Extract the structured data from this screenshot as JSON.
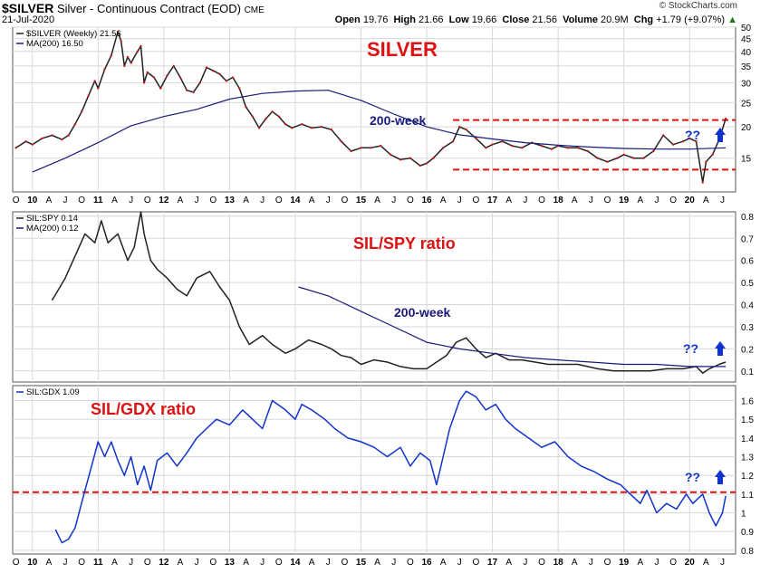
{
  "header": {
    "symbol": "$SILVER",
    "name": "Silver - Continuous Contract (EOD)",
    "exchange": "CME",
    "date": "21-Jul-2020",
    "open_label": "Open",
    "open": "19.76",
    "high_label": "High",
    "high": "21.66",
    "low_label": "Low",
    "low": "19.66",
    "close_label": "Close",
    "close": "21.56",
    "volume_label": "Volume",
    "volume": "20.9M",
    "chg_label": "Chg",
    "chg": "+1.79 (+9.07%)",
    "chg_arrow": "▲",
    "logo": "© StockCharts.com"
  },
  "colors": {
    "red": "#dd1111",
    "blue": "#1133cc",
    "navy": "#1a1a7a",
    "price": "#222222",
    "grid": "#d8d8d8"
  },
  "chart_data": [
    {
      "type": "line",
      "title": "SILVER",
      "legend_entries": [
        "$SILVER (Weekly) 21.56",
        "MA(200) 16.50"
      ],
      "annotations": [
        "200-week",
        "??"
      ],
      "x_range": [
        2009.7,
        2020.7
      ],
      "ylim": [
        11,
        50
      ],
      "y_ticks": [
        15,
        20,
        25,
        30,
        35,
        40,
        45,
        50
      ],
      "log_scale": true,
      "grid": true,
      "reference_lines": [
        21.3,
        13.5
      ],
      "series": [
        {
          "name": "$SILVER (Weekly) 21.56",
          "x": [
            2009.75,
            2009.9,
            2010.0,
            2010.15,
            2010.3,
            2010.45,
            2010.55,
            2010.65,
            2010.75,
            2010.85,
            2010.95,
            2011.0,
            2011.1,
            2011.2,
            2011.3,
            2011.35,
            2011.4,
            2011.45,
            2011.5,
            2011.6,
            2011.65,
            2011.7,
            2011.75,
            2011.85,
            2011.95,
            2012.05,
            2012.15,
            2012.25,
            2012.35,
            2012.45,
            2012.55,
            2012.65,
            2012.75,
            2012.85,
            2012.95,
            2013.05,
            2013.15,
            2013.25,
            2013.35,
            2013.45,
            2013.55,
            2013.65,
            2013.75,
            2013.85,
            2013.95,
            2014.1,
            2014.25,
            2014.4,
            2014.55,
            2014.7,
            2014.85,
            2015.0,
            2015.15,
            2015.3,
            2015.45,
            2015.6,
            2015.75,
            2015.9,
            2016.0,
            2016.1,
            2016.25,
            2016.4,
            2016.5,
            2016.6,
            2016.75,
            2016.9,
            2017.0,
            2017.15,
            2017.3,
            2017.45,
            2017.6,
            2017.75,
            2017.9,
            2018.0,
            2018.15,
            2018.3,
            2018.45,
            2018.6,
            2018.75,
            2018.9,
            2019.0,
            2019.15,
            2019.3,
            2019.45,
            2019.6,
            2019.75,
            2019.9,
            2020.0,
            2020.1,
            2020.2,
            2020.25,
            2020.35,
            2020.45,
            2020.55
          ],
          "values": [
            16.5,
            17.5,
            17.0,
            18.0,
            18.5,
            17.8,
            18.5,
            20.5,
            23.0,
            26.5,
            30.5,
            28.5,
            34.0,
            38.5,
            48.0,
            44.0,
            35.0,
            38.0,
            36.0,
            40.0,
            42.0,
            30.0,
            33.0,
            31.5,
            28.5,
            32.0,
            35.0,
            31.5,
            28.0,
            27.5,
            30.0,
            34.5,
            33.5,
            32.5,
            30.5,
            31.5,
            28.5,
            24.0,
            22.0,
            19.8,
            21.5,
            23.0,
            22.0,
            20.5,
            19.8,
            20.5,
            19.8,
            20.0,
            19.5,
            17.5,
            16.0,
            16.5,
            16.5,
            16.8,
            15.5,
            14.8,
            15.0,
            14.0,
            14.3,
            15.0,
            16.5,
            17.5,
            20.0,
            19.5,
            18.0,
            16.5,
            17.0,
            17.5,
            16.8,
            16.5,
            17.3,
            16.8,
            16.3,
            16.8,
            16.5,
            16.5,
            16.0,
            15.0,
            14.5,
            15.0,
            15.5,
            15.0,
            15.0,
            16.0,
            18.5,
            17.0,
            17.5,
            18.0,
            17.5,
            12.0,
            14.5,
            15.5,
            17.8,
            21.56
          ]
        },
        {
          "name": "MA(200) 16.50",
          "x": [
            2010.0,
            2010.5,
            2011.0,
            2011.5,
            2012.0,
            2012.5,
            2013.0,
            2013.5,
            2014.0,
            2014.5,
            2015.0,
            2015.5,
            2016.0,
            2016.5,
            2017.0,
            2017.5,
            2018.0,
            2018.5,
            2019.0,
            2019.5,
            2020.0,
            2020.55
          ],
          "values": [
            13.2,
            15.0,
            17.3,
            20.2,
            22.0,
            23.5,
            25.8,
            27.2,
            27.8,
            28.0,
            25.5,
            22.5,
            20.0,
            18.6,
            17.9,
            17.3,
            16.9,
            16.6,
            16.4,
            16.3,
            16.3,
            16.5
          ]
        }
      ]
    },
    {
      "type": "line",
      "title": "SIL/SPY ratio",
      "legend_entries": [
        "SIL:SPY 0.14",
        "MA(200) 0.12"
      ],
      "annotations": [
        "200-week",
        "??"
      ],
      "x_range": [
        2009.7,
        2020.7
      ],
      "ylim": [
        0.05,
        0.82
      ],
      "y_ticks": [
        0.1,
        0.2,
        0.3,
        0.4,
        0.5,
        0.6,
        0.7,
        0.8
      ],
      "grid": true,
      "series": [
        {
          "name": "SIL:SPY 0.14",
          "x": [
            2010.3,
            2010.5,
            2010.65,
            2010.8,
            2010.95,
            2011.05,
            2011.15,
            2011.3,
            2011.45,
            2011.55,
            2011.65,
            2011.7,
            2011.8,
            2011.9,
            2012.05,
            2012.2,
            2012.35,
            2012.5,
            2012.7,
            2012.85,
            2013.0,
            2013.15,
            2013.3,
            2013.5,
            2013.65,
            2013.85,
            2014.0,
            2014.2,
            2014.4,
            2014.55,
            2014.7,
            2014.85,
            2015.0,
            2015.2,
            2015.4,
            2015.6,
            2015.8,
            2016.0,
            2016.15,
            2016.3,
            2016.45,
            2016.6,
            2016.75,
            2016.9,
            2017.05,
            2017.25,
            2017.45,
            2017.65,
            2017.85,
            2018.05,
            2018.3,
            2018.6,
            2018.85,
            2019.1,
            2019.4,
            2019.65,
            2019.9,
            2020.1,
            2020.2,
            2020.3,
            2020.45,
            2020.55
          ],
          "values": [
            0.42,
            0.52,
            0.62,
            0.72,
            0.68,
            0.78,
            0.68,
            0.72,
            0.6,
            0.66,
            0.82,
            0.72,
            0.6,
            0.56,
            0.52,
            0.47,
            0.44,
            0.52,
            0.55,
            0.48,
            0.42,
            0.3,
            0.22,
            0.26,
            0.22,
            0.18,
            0.2,
            0.24,
            0.22,
            0.2,
            0.17,
            0.16,
            0.13,
            0.15,
            0.14,
            0.12,
            0.11,
            0.11,
            0.14,
            0.17,
            0.23,
            0.25,
            0.2,
            0.16,
            0.18,
            0.15,
            0.15,
            0.14,
            0.13,
            0.13,
            0.13,
            0.11,
            0.1,
            0.1,
            0.1,
            0.11,
            0.11,
            0.12,
            0.09,
            0.11,
            0.13,
            0.14
          ]
        },
        {
          "name": "MA(200) 0.12",
          "x": [
            2014.05,
            2014.5,
            2015.0,
            2015.5,
            2016.0,
            2016.5,
            2017.0,
            2017.5,
            2018.0,
            2018.5,
            2019.0,
            2019.5,
            2020.0,
            2020.55
          ],
          "values": [
            0.48,
            0.44,
            0.37,
            0.3,
            0.23,
            0.2,
            0.18,
            0.16,
            0.15,
            0.14,
            0.13,
            0.13,
            0.12,
            0.12
          ]
        }
      ]
    },
    {
      "type": "line",
      "title": "SIL/GDX ratio",
      "legend_entries": [
        "SIL:GDX 1.09"
      ],
      "annotations": [
        "??"
      ],
      "x_range": [
        2009.7,
        2020.7
      ],
      "ylim": [
        0.78,
        1.68
      ],
      "y_ticks": [
        0.8,
        0.9,
        1.0,
        1.1,
        1.2,
        1.3,
        1.4,
        1.5,
        1.6
      ],
      "grid": true,
      "reference_lines": [
        1.11
      ],
      "x_tick_labels": [
        "O",
        "10",
        "A",
        "J",
        "O",
        "11",
        "A",
        "J",
        "O",
        "12",
        "A",
        "J",
        "O",
        "13",
        "A",
        "J",
        "O",
        "14",
        "A",
        "J",
        "O",
        "15",
        "A",
        "J",
        "O",
        "16",
        "A",
        "J",
        "O",
        "17",
        "A",
        "J",
        "O",
        "18",
        "A",
        "J",
        "O",
        "19",
        "A",
        "J",
        "O",
        "20",
        "A",
        "J"
      ],
      "series": [
        {
          "name": "SIL:GDX 1.09",
          "x": [
            2010.35,
            2010.45,
            2010.55,
            2010.65,
            2010.8,
            2010.9,
            2011.0,
            2011.1,
            2011.2,
            2011.3,
            2011.4,
            2011.5,
            2011.6,
            2011.7,
            2011.8,
            2011.9,
            2012.05,
            2012.2,
            2012.35,
            2012.5,
            2012.65,
            2012.8,
            2013.0,
            2013.2,
            2013.35,
            2013.5,
            2013.65,
            2013.85,
            2014.0,
            2014.1,
            2014.25,
            2014.45,
            2014.6,
            2014.8,
            2015.0,
            2015.2,
            2015.4,
            2015.6,
            2015.75,
            2015.9,
            2016.05,
            2016.15,
            2016.25,
            2016.35,
            2016.5,
            2016.6,
            2016.75,
            2016.9,
            2017.05,
            2017.2,
            2017.35,
            2017.55,
            2017.75,
            2017.95,
            2018.15,
            2018.35,
            2018.55,
            2018.75,
            2018.95,
            2019.1,
            2019.25,
            2019.35,
            2019.5,
            2019.65,
            2019.8,
            2019.95,
            2020.05,
            2020.2,
            2020.3,
            2020.4,
            2020.5,
            2020.55
          ],
          "values": [
            0.91,
            0.84,
            0.86,
            0.92,
            1.12,
            1.25,
            1.38,
            1.3,
            1.38,
            1.28,
            1.2,
            1.3,
            1.15,
            1.25,
            1.12,
            1.28,
            1.32,
            1.25,
            1.32,
            1.4,
            1.45,
            1.5,
            1.47,
            1.55,
            1.5,
            1.45,
            1.6,
            1.55,
            1.5,
            1.58,
            1.55,
            1.5,
            1.45,
            1.4,
            1.38,
            1.35,
            1.3,
            1.35,
            1.25,
            1.32,
            1.28,
            1.15,
            1.3,
            1.45,
            1.6,
            1.65,
            1.62,
            1.55,
            1.58,
            1.5,
            1.45,
            1.4,
            1.35,
            1.38,
            1.3,
            1.25,
            1.22,
            1.18,
            1.15,
            1.1,
            1.05,
            1.12,
            1.0,
            1.05,
            1.02,
            1.1,
            1.05,
            1.1,
            1.0,
            0.93,
            1.0,
            1.09
          ]
        }
      ]
    }
  ]
}
